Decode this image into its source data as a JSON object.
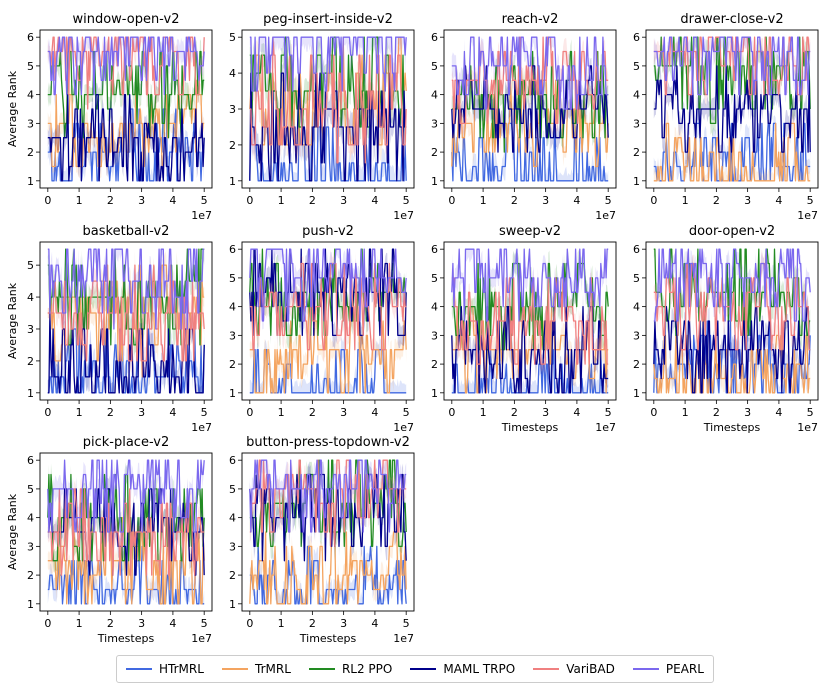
{
  "chart_data": {
    "type": "line",
    "layout": "3x4 grid of subplots (10 panels)",
    "x_scale_label": "1e7",
    "xticks": [
      0,
      1,
      2,
      3,
      4,
      5
    ],
    "xlim": [
      0,
      5
    ],
    "ylabel": "Average Rank",
    "xlabel": "Timesteps",
    "series": [
      {
        "name": "HTrMRL",
        "color": "#4169e1"
      },
      {
        "name": "TrMRL",
        "color": "#f4a460"
      },
      {
        "name": "RL2 PPO",
        "color": "#228b22"
      },
      {
        "name": "MAML TRPO",
        "color": "#00008b"
      },
      {
        "name": "VariBAD",
        "color": "#f08080"
      },
      {
        "name": "PEARL",
        "color": "#7b68ee"
      }
    ],
    "panels": [
      {
        "title": "window-open-v2",
        "ylim": [
          1,
          6
        ],
        "yticks": [
          1,
          2,
          3,
          4,
          5,
          6
        ],
        "ylabel": "Average Rank",
        "xlabel": "",
        "levels": {
          "HTrMRL": 1.8,
          "TrMRL": 3.0,
          "RL2 PPO": 4.0,
          "MAML TRPO": 2.3,
          "VariBAD": 5.3,
          "PEARL": 5.5
        }
      },
      {
        "title": "peg-insert-inside-v2",
        "ylim": [
          1,
          5
        ],
        "yticks": [
          1,
          2,
          3,
          4,
          5
        ],
        "ylabel": "",
        "xlabel": "",
        "levels": {
          "HTrMRL": 1.0,
          "TrMRL": 3.3,
          "RL2 PPO": 3.5,
          "MAML TRPO": 2.4,
          "VariBAD": 3.2,
          "PEARL": 5.0
        }
      },
      {
        "title": "reach-v2",
        "ylim": [
          1,
          6
        ],
        "yticks": [
          1,
          2,
          3,
          4,
          5,
          6
        ],
        "ylabel": "",
        "xlabel": "",
        "levels": {
          "HTrMRL": 1.2,
          "TrMRL": 3.0,
          "RL2 PPO": 3.8,
          "MAML TRPO": 3.6,
          "VariBAD": 4.5,
          "PEARL": 5.2
        }
      },
      {
        "title": "drawer-close-v2",
        "ylim": [
          1,
          6
        ],
        "yticks": [
          1,
          2,
          3,
          4,
          5,
          6
        ],
        "ylabel": "",
        "xlabel": "",
        "levels": {
          "HTrMRL": 1.6,
          "TrMRL": 1.2,
          "RL2 PPO": 4.8,
          "MAML TRPO": 3.4,
          "VariBAD": 5.3,
          "PEARL": 5.4
        }
      },
      {
        "title": "basketball-v2",
        "ylim": [
          1,
          5.5
        ],
        "yticks": [
          1,
          2,
          3,
          4,
          5
        ],
        "ylabel": "Average Rank",
        "xlabel": "",
        "levels": {
          "HTrMRL": 1.3,
          "TrMRL": 3.3,
          "RL2 PPO": 4.0,
          "MAML TRPO": 1.7,
          "VariBAD": 3.3,
          "PEARL": 4.6
        }
      },
      {
        "title": "push-v2",
        "ylim": [
          1,
          6
        ],
        "yticks": [
          1,
          2,
          3,
          4,
          5,
          6
        ],
        "ylabel": "",
        "xlabel": "",
        "levels": {
          "HTrMRL": 1.0,
          "TrMRL": 2.3,
          "RL2 PPO": 4.3,
          "MAML TRPO": 4.5,
          "VariBAD": 4.0,
          "PEARL": 5.0
        }
      },
      {
        "title": "sweep-v2",
        "ylim": [
          1,
          6
        ],
        "yticks": [
          1,
          2,
          3,
          4,
          5,
          6
        ],
        "ylabel": "",
        "xlabel": "Timesteps",
        "levels": {
          "HTrMRL": 1.0,
          "TrMRL": 2.6,
          "RL2 PPO": 4.0,
          "MAML TRPO": 2.4,
          "VariBAD": 3.5,
          "PEARL": 5.2
        }
      },
      {
        "title": "door-open-v2",
        "ylim": [
          1,
          6
        ],
        "yticks": [
          1,
          2,
          3,
          4,
          5,
          6
        ],
        "ylabel": "",
        "xlabel": "Timesteps",
        "levels": {
          "HTrMRL": 1.8,
          "TrMRL": 1.6,
          "RL2 PPO": 4.6,
          "MAML TRPO": 2.5,
          "VariBAD": 3.8,
          "PEARL": 5.0
        }
      },
      {
        "title": "pick-place-v2",
        "ylim": [
          1,
          6
        ],
        "yticks": [
          1,
          2,
          3,
          4,
          5,
          6
        ],
        "ylabel": "Average Rank",
        "xlabel": "Timesteps",
        "levels": {
          "HTrMRL": 1.3,
          "TrMRL": 2.4,
          "RL2 PPO": 4.0,
          "MAML TRPO": 3.5,
          "VariBAD": 3.4,
          "PEARL": 5.0
        }
      },
      {
        "title": "button-press-topdown-v2",
        "ylim": [
          1,
          6
        ],
        "yticks": [
          1,
          2,
          3,
          4,
          5,
          6
        ],
        "ylabel": "",
        "xlabel": "Timesteps",
        "levels": {
          "HTrMRL": 1.4,
          "TrMRL": 2.0,
          "RL2 PPO": 4.5,
          "MAML TRPO": 4.0,
          "VariBAD": 4.8,
          "PEARL": 5.0
        }
      }
    ]
  }
}
